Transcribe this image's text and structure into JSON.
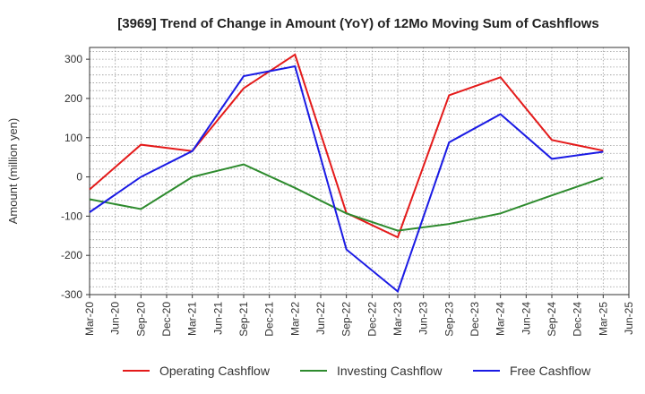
{
  "chart_data": {
    "type": "line",
    "title": "[3969]  Trend of Change in Amount (YoY) of 12Mo Moving Sum of Cashflows",
    "xlabel": "",
    "ylabel": "Amount (million yen)",
    "ylim": [
      -300,
      330
    ],
    "yticks": [
      300,
      200,
      100,
      0,
      -100,
      -200,
      -300
    ],
    "grid": true,
    "legend_position": "bottom",
    "x_categories": [
      "Mar-20",
      "Jun-20",
      "Sep-20",
      "Dec-20",
      "Mar-21",
      "Jun-21",
      "Sep-21",
      "Dec-21",
      "Mar-22",
      "Jun-22",
      "Sep-22",
      "Dec-22",
      "Mar-23",
      "Jun-23",
      "Sep-23",
      "Dec-23",
      "Mar-24",
      "Jun-24",
      "Sep-24",
      "Dec-24",
      "Mar-25",
      "Jun-25"
    ],
    "series": [
      {
        "name": "Operating Cashflow",
        "color": "#e41a1a",
        "x": [
          "Mar-20",
          "Sep-20",
          "Mar-21",
          "Sep-21",
          "Mar-22",
          "Sep-22",
          "Mar-23",
          "Sep-23",
          "Mar-24",
          "Sep-24",
          "Mar-25"
        ],
        "values": [
          -32,
          82,
          66,
          226,
          312,
          -92,
          -154,
          208,
          254,
          94,
          67
        ]
      },
      {
        "name": "Investing Cashflow",
        "color": "#2e8b2e",
        "x": [
          "Mar-20",
          "Sep-20",
          "Mar-21",
          "Sep-21",
          "Mar-22",
          "Sep-22",
          "Mar-23",
          "Sep-23",
          "Mar-24",
          "Sep-24",
          "Mar-25"
        ],
        "values": [
          -57,
          -82,
          0,
          32,
          -28,
          -93,
          -137,
          -120,
          -93,
          -47,
          -2
        ]
      },
      {
        "name": "Free Cashflow",
        "color": "#1a1ae4",
        "x": [
          "Mar-20",
          "Sep-20",
          "Mar-21",
          "Sep-21",
          "Mar-22",
          "Sep-22",
          "Mar-23",
          "Sep-23",
          "Mar-24",
          "Sep-24",
          "Mar-25"
        ],
        "values": [
          -90,
          0,
          66,
          257,
          282,
          -185,
          -292,
          88,
          160,
          46,
          64
        ]
      }
    ]
  }
}
